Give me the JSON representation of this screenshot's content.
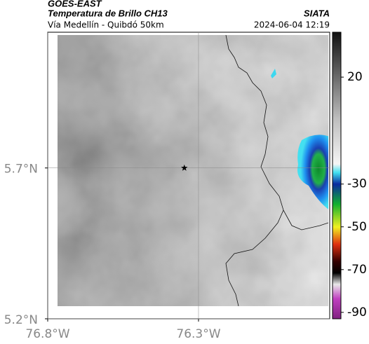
{
  "header": {
    "source": "GOES-EAST",
    "product": "Temperatura de Brillo CH13",
    "region": "Vía Medellín - Quibdó 50km",
    "org": "SIATA",
    "timestamp": "2024-06-04 12:19"
  },
  "chart_data": {
    "type": "map",
    "xlim": [
      -76.8,
      -75.865
    ],
    "ylim": [
      5.2,
      6.15
    ],
    "xticks": [
      {
        "value": -76.8,
        "label": "76.8°W"
      },
      {
        "value": -76.3,
        "label": "76.3°W"
      }
    ],
    "yticks": [
      {
        "value": 5.2,
        "label": "5.2°N"
      },
      {
        "value": 5.7,
        "label": "5.7°N"
      }
    ],
    "grid": true,
    "marker": {
      "x": -76.347,
      "y": 5.7
    },
    "colorbar": {
      "lim": [
        -93,
        41
      ],
      "ticks": [
        20,
        -30,
        -50,
        -70,
        -90
      ]
    }
  }
}
